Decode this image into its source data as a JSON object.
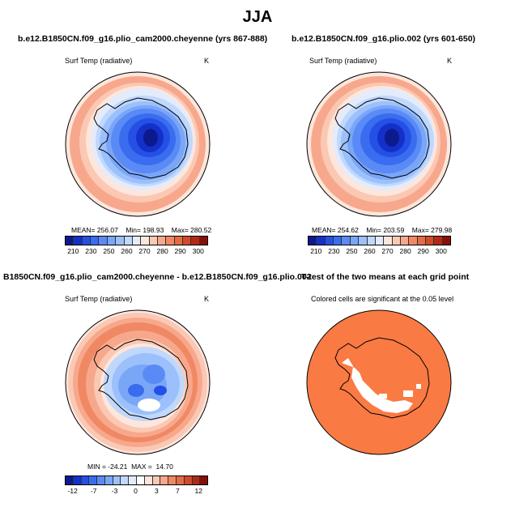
{
  "title": "JJA",
  "panels": [
    {
      "title": "b.e12.B1850CN.f09_g16.plio_cam2000.cheyenne (yrs 867-888)",
      "variable": "Surf Temp (radiative)",
      "units": "K",
      "stats": "MEAN= 256.07    Min= 198.93    Max= 280.52",
      "colorbar_ticks": [
        "210",
        "230",
        "250",
        "260",
        "270",
        "280",
        "290",
        "300"
      ]
    },
    {
      "title": "b.e12.B1850CN.f09_g16.plio.002 (yrs 601-650)",
      "variable": "Surf Temp (radiative)",
      "units": "K",
      "stats": "MEAN= 254.62    Min= 203.59    Max= 279.98",
      "colorbar_ticks": [
        "210",
        "230",
        "250",
        "260",
        "270",
        "280",
        "290",
        "300"
      ]
    },
    {
      "title": "B1850CN.f09_g16.plio_cam2000.cheyenne - b.e12.B1850CN.f09_g16.plio.002",
      "variable": "Surf Temp (radiative)",
      "units": "K",
      "stats": "MIN = -24.21  MAX =  14.70",
      "colorbar_ticks": [
        "-12",
        "-7",
        "-3",
        "0",
        "3",
        "7",
        "12"
      ]
    },
    {
      "title": "T-test of the two means at each grid point",
      "subtitle": "Colored cells are significant at the 0.05 level"
    }
  ],
  "colors": {
    "abs_scale": [
      "#0b1a8c",
      "#1530c8",
      "#2450e6",
      "#3a6cf0",
      "#5a8af5",
      "#7aa6f8",
      "#9cc0fb",
      "#c0d8fc",
      "#e2ecfd",
      "#fde6dc",
      "#fbc8b4",
      "#f7a88c",
      "#f08864",
      "#e56a46",
      "#d04a2c",
      "#b22a16",
      "#8a0e08"
    ],
    "diff_scale": [
      "#0b1a8c",
      "#1530c8",
      "#2450e6",
      "#3a6cf0",
      "#5a8af5",
      "#7aa6f8",
      "#9cc0fb",
      "#c0d8fc",
      "#e2ecfd",
      "#ffffff",
      "#fde6dc",
      "#fbc8b4",
      "#f7a88c",
      "#f08864",
      "#e56a46",
      "#d04a2c",
      "#b22a16",
      "#8a0e08"
    ],
    "significance": "#fa7a44"
  }
}
